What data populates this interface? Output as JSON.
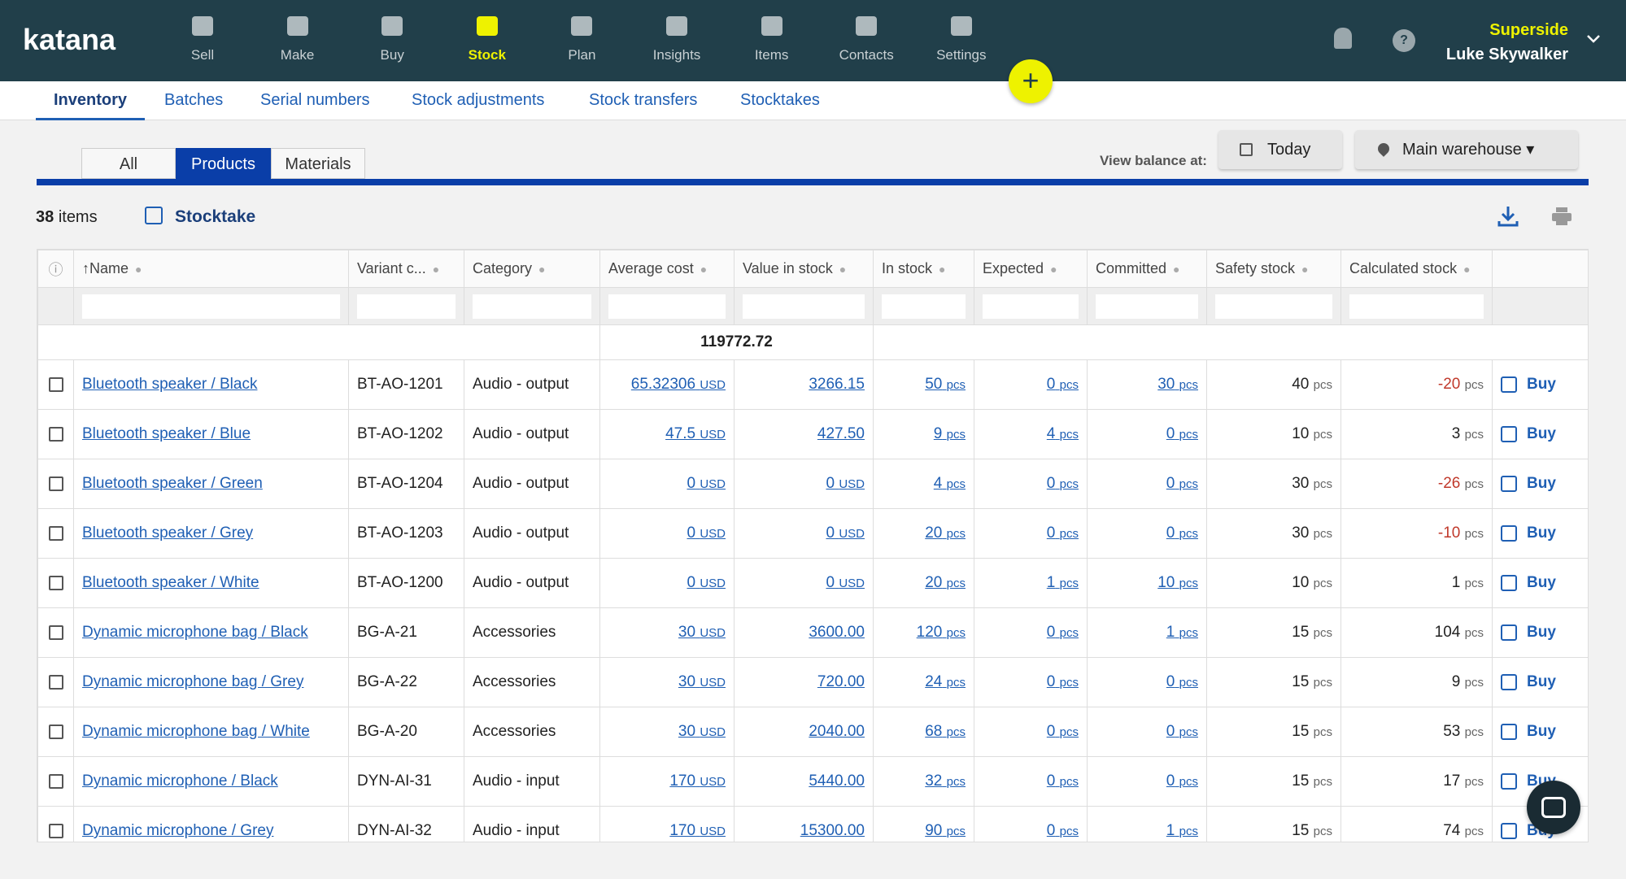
{
  "nav": {
    "logo": "katana",
    "items": [
      "Sell",
      "Make",
      "Buy",
      "Stock",
      "Plan",
      "Insights",
      "Items",
      "Contacts",
      "Settings"
    ],
    "active": 3
  },
  "user": {
    "company": "Superside",
    "name": "Luke Skywalker"
  },
  "subnav": {
    "tabs": [
      "Inventory",
      "Batches",
      "Serial numbers",
      "Stock adjustments",
      "Stock transfers",
      "Stocktakes"
    ],
    "active": 0
  },
  "filter_tabs": {
    "tabs": [
      "All",
      "Products",
      "Materials"
    ],
    "active": 1
  },
  "view_balance": {
    "label": "View balance at:",
    "date": "Today",
    "location": "Main warehouse"
  },
  "toolbar": {
    "count": "38",
    "count_label": "items",
    "stocktake": "Stocktake"
  },
  "table": {
    "columns": [
      "Name",
      "Variant c...",
      "Category",
      "Average cost",
      "Value in stock",
      "In stock",
      "Expected",
      "Committed",
      "Safety stock",
      "Calculated stock"
    ],
    "total": "119772.72",
    "action": "Buy",
    "rows": [
      [
        "Bluetooth speaker / Black",
        "BT-AO-1201",
        "Audio - output",
        [
          "65.32306",
          "USD"
        ],
        [
          "3266.15"
        ],
        [
          "50",
          "pcs"
        ],
        [
          "0",
          "pcs"
        ],
        [
          "30",
          "pcs"
        ],
        [
          "40",
          "pcs"
        ],
        [
          "-20",
          "pcs"
        ]
      ],
      [
        "Bluetooth speaker / Blue",
        "BT-AO-1202",
        "Audio - output",
        [
          "47.5",
          "USD"
        ],
        [
          "427.50"
        ],
        [
          "9",
          "pcs"
        ],
        [
          "4",
          "pcs"
        ],
        [
          "0",
          "pcs"
        ],
        [
          "10",
          "pcs"
        ],
        [
          "3",
          "pcs"
        ]
      ],
      [
        "Bluetooth speaker / Green",
        "BT-AO-1204",
        "Audio - output",
        [
          "0",
          "USD"
        ],
        [
          "0",
          "USD"
        ],
        [
          "4",
          "pcs"
        ],
        [
          "0",
          "pcs"
        ],
        [
          "0",
          "pcs"
        ],
        [
          "30",
          "pcs"
        ],
        [
          "-26",
          "pcs"
        ]
      ],
      [
        "Bluetooth speaker / Grey",
        "BT-AO-1203",
        "Audio - output",
        [
          "0",
          "USD"
        ],
        [
          "0",
          "USD"
        ],
        [
          "20",
          "pcs"
        ],
        [
          "0",
          "pcs"
        ],
        [
          "0",
          "pcs"
        ],
        [
          "30",
          "pcs"
        ],
        [
          "-10",
          "pcs"
        ]
      ],
      [
        "Bluetooth speaker / White",
        "BT-AO-1200",
        "Audio - output",
        [
          "0",
          "USD"
        ],
        [
          "0",
          "USD"
        ],
        [
          "20",
          "pcs"
        ],
        [
          "1",
          "pcs"
        ],
        [
          "10",
          "pcs"
        ],
        [
          "10",
          "pcs"
        ],
        [
          "1",
          "pcs"
        ]
      ],
      [
        "Dynamic microphone bag / Black",
        "BG-A-21",
        "Accessories",
        [
          "30",
          "USD"
        ],
        [
          "3600.00"
        ],
        [
          "120",
          "pcs"
        ],
        [
          "0",
          "pcs"
        ],
        [
          "1",
          "pcs"
        ],
        [
          "15",
          "pcs"
        ],
        [
          "104",
          "pcs"
        ]
      ],
      [
        "Dynamic microphone bag / Grey",
        "BG-A-22",
        "Accessories",
        [
          "30",
          "USD"
        ],
        [
          "720.00"
        ],
        [
          "24",
          "pcs"
        ],
        [
          "0",
          "pcs"
        ],
        [
          "0",
          "pcs"
        ],
        [
          "15",
          "pcs"
        ],
        [
          "9",
          "pcs"
        ]
      ],
      [
        "Dynamic microphone bag / White",
        "BG-A-20",
        "Accessories",
        [
          "30",
          "USD"
        ],
        [
          "2040.00"
        ],
        [
          "68",
          "pcs"
        ],
        [
          "0",
          "pcs"
        ],
        [
          "0",
          "pcs"
        ],
        [
          "15",
          "pcs"
        ],
        [
          "53",
          "pcs"
        ]
      ],
      [
        "Dynamic microphone / Black",
        "DYN-AI-31",
        "Audio - input",
        [
          "170",
          "USD"
        ],
        [
          "5440.00"
        ],
        [
          "32",
          "pcs"
        ],
        [
          "0",
          "pcs"
        ],
        [
          "0",
          "pcs"
        ],
        [
          "15",
          "pcs"
        ],
        [
          "17",
          "pcs"
        ]
      ],
      [
        "Dynamic microphone / Grey",
        "DYN-AI-32",
        "Audio - input",
        [
          "170",
          "USD"
        ],
        [
          "15300.00"
        ],
        [
          "90",
          "pcs"
        ],
        [
          "0",
          "pcs"
        ],
        [
          "1",
          "pcs"
        ],
        [
          "15",
          "pcs"
        ],
        [
          "74",
          "pcs"
        ]
      ]
    ]
  }
}
